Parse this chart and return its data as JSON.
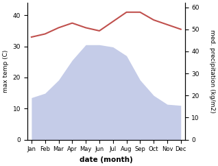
{
  "months": [
    "Jan",
    "Feb",
    "Mar",
    "Apr",
    "May",
    "Jun",
    "Jul",
    "Aug",
    "Sep",
    "Oct",
    "Nov",
    "Dec"
  ],
  "x": [
    0,
    1,
    2,
    3,
    4,
    5,
    6,
    7,
    8,
    9,
    10,
    11
  ],
  "temperature": [
    33,
    34,
    36,
    37.5,
    36,
    35,
    38,
    41,
    41,
    38.5,
    37,
    35.5
  ],
  "precipitation": [
    19,
    21,
    27,
    36,
    43,
    43,
    42,
    38,
    27,
    20,
    16,
    15.5
  ],
  "temp_color": "#c0504d",
  "precip_fill_color": "#c5cce8",
  "precip_fill_alpha": 1.0,
  "xlabel": "date (month)",
  "ylabel_left": "max temp (C)",
  "ylabel_right": "med. precipitation (kg/m2)",
  "ylim_left": [
    0,
    44
  ],
  "ylim_right": [
    0,
    62
  ],
  "yticks_left": [
    0,
    10,
    20,
    30,
    40
  ],
  "yticks_right": [
    0,
    10,
    20,
    30,
    40,
    50,
    60
  ],
  "figsize": [
    3.18,
    2.42
  ],
  "dpi": 100
}
